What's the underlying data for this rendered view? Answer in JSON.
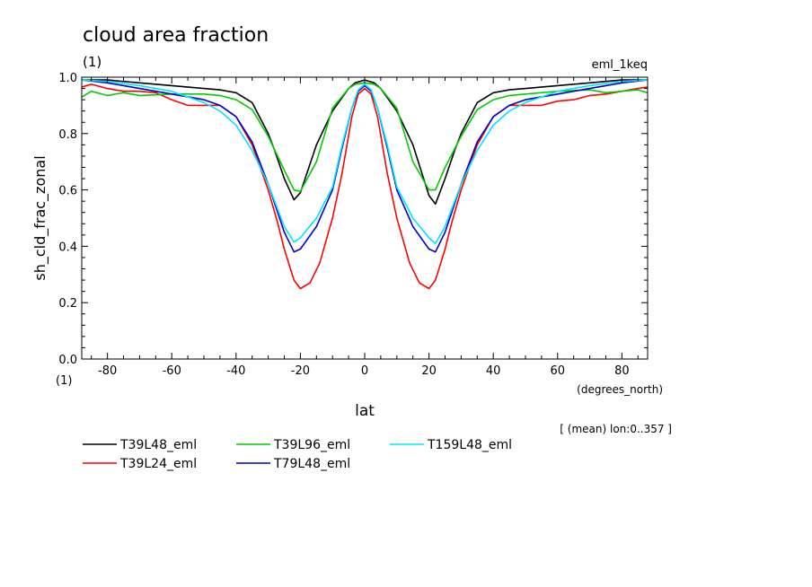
{
  "chart_data": {
    "type": "line",
    "title": "cloud area fraction",
    "units_label": "(1)",
    "experiment_label": "eml_1keq",
    "xlabel": "lat",
    "xunits": "(degrees_north)",
    "ylabel": "sh_cld_frac_zonal",
    "yunits": "(1)",
    "annotation": "[ (mean) lon:0..357 ]",
    "xlim": [
      -88,
      88
    ],
    "ylim": [
      0.0,
      1.0
    ],
    "xticks": [
      -80,
      -60,
      -40,
      -20,
      0,
      20,
      40,
      60,
      80
    ],
    "yticks": [
      "0.0",
      "0.2",
      "0.4",
      "0.6",
      "0.8",
      "1.0"
    ],
    "legend_position": "bottom",
    "series": [
      {
        "name": "T39L48_eml",
        "color": "#000000",
        "x": [
          -88,
          -80,
          -70,
          -60,
          -50,
          -45,
          -40,
          -35,
          -30,
          -28,
          -25,
          -22,
          -20,
          -15,
          -10,
          -5,
          -3,
          0,
          3,
          5,
          10,
          15,
          20,
          22,
          25,
          28,
          30,
          35,
          40,
          45,
          50,
          60,
          70,
          80,
          88
        ],
        "y": [
          0.99,
          0.99,
          0.98,
          0.97,
          0.96,
          0.955,
          0.945,
          0.91,
          0.8,
          0.74,
          0.64,
          0.565,
          0.59,
          0.76,
          0.88,
          0.96,
          0.98,
          0.99,
          0.98,
          0.96,
          0.88,
          0.76,
          0.58,
          0.55,
          0.64,
          0.74,
          0.8,
          0.91,
          0.945,
          0.955,
          0.96,
          0.97,
          0.98,
          0.99,
          0.99
        ]
      },
      {
        "name": "T39L24_eml",
        "color": "#ff0000",
        "x": [
          -88,
          -85,
          -80,
          -75,
          -70,
          -65,
          -60,
          -55,
          -50,
          -45,
          -40,
          -35,
          -30,
          -27,
          -25,
          -22,
          -20,
          -17,
          -14,
          -10,
          -7,
          -4,
          -2,
          0,
          2,
          4,
          7,
          10,
          14,
          17,
          20,
          22,
          25,
          27,
          30,
          35,
          40,
          45,
          50,
          55,
          60,
          65,
          70,
          75,
          80,
          85,
          88
        ],
        "y": [
          0.965,
          0.975,
          0.96,
          0.95,
          0.95,
          0.945,
          0.92,
          0.9,
          0.9,
          0.9,
          0.86,
          0.76,
          0.6,
          0.48,
          0.39,
          0.28,
          0.25,
          0.27,
          0.34,
          0.5,
          0.66,
          0.86,
          0.94,
          0.96,
          0.94,
          0.86,
          0.66,
          0.5,
          0.34,
          0.27,
          0.25,
          0.28,
          0.39,
          0.48,
          0.6,
          0.76,
          0.86,
          0.9,
          0.9,
          0.9,
          0.915,
          0.92,
          0.935,
          0.94,
          0.95,
          0.96,
          0.965
        ]
      },
      {
        "name": "T39L96_eml",
        "color": "#00cc00",
        "x": [
          -88,
          -85,
          -80,
          -75,
          -70,
          -60,
          -50,
          -45,
          -40,
          -35,
          -30,
          -25,
          -22,
          -20,
          -15,
          -10,
          -5,
          -3,
          0,
          3,
          5,
          10,
          15,
          20,
          22,
          25,
          30,
          35,
          40,
          45,
          50,
          60,
          70,
          75,
          80,
          85,
          88
        ],
        "y": [
          0.93,
          0.95,
          0.935,
          0.945,
          0.935,
          0.94,
          0.94,
          0.935,
          0.92,
          0.885,
          0.79,
          0.67,
          0.6,
          0.595,
          0.7,
          0.89,
          0.96,
          0.975,
          0.98,
          0.975,
          0.96,
          0.89,
          0.7,
          0.6,
          0.6,
          0.68,
          0.79,
          0.885,
          0.92,
          0.935,
          0.94,
          0.95,
          0.955,
          0.945,
          0.95,
          0.955,
          0.945
        ]
      },
      {
        "name": "T79L48_eml",
        "color": "#0000cc",
        "x": [
          -88,
          -80,
          -70,
          -60,
          -50,
          -45,
          -40,
          -35,
          -30,
          -25,
          -22,
          -20,
          -15,
          -10,
          -7,
          -4,
          -2,
          0,
          2,
          4,
          7,
          10,
          15,
          20,
          22,
          25,
          30,
          35,
          40,
          45,
          50,
          60,
          70,
          80,
          88
        ],
        "y": [
          0.99,
          0.98,
          0.96,
          0.94,
          0.92,
          0.9,
          0.86,
          0.77,
          0.62,
          0.45,
          0.38,
          0.39,
          0.47,
          0.6,
          0.75,
          0.89,
          0.95,
          0.97,
          0.95,
          0.89,
          0.75,
          0.6,
          0.47,
          0.39,
          0.38,
          0.45,
          0.62,
          0.77,
          0.86,
          0.9,
          0.92,
          0.94,
          0.96,
          0.98,
          0.99
        ]
      },
      {
        "name": "T159L48_eml",
        "color": "#00e5ff",
        "x": [
          -88,
          -80,
          -70,
          -60,
          -50,
          -45,
          -40,
          -35,
          -30,
          -25,
          -22,
          -20,
          -15,
          -10,
          -7,
          -4,
          -2,
          0,
          2,
          4,
          7,
          10,
          15,
          20,
          22,
          25,
          30,
          35,
          40,
          45,
          50,
          60,
          70,
          80,
          88
        ],
        "y": [
          0.99,
          0.985,
          0.97,
          0.95,
          0.91,
          0.88,
          0.83,
          0.74,
          0.62,
          0.47,
          0.415,
          0.43,
          0.5,
          0.61,
          0.76,
          0.89,
          0.955,
          0.975,
          0.955,
          0.89,
          0.76,
          0.61,
          0.5,
          0.43,
          0.41,
          0.47,
          0.62,
          0.74,
          0.83,
          0.88,
          0.91,
          0.95,
          0.97,
          0.985,
          0.99
        ]
      }
    ]
  }
}
